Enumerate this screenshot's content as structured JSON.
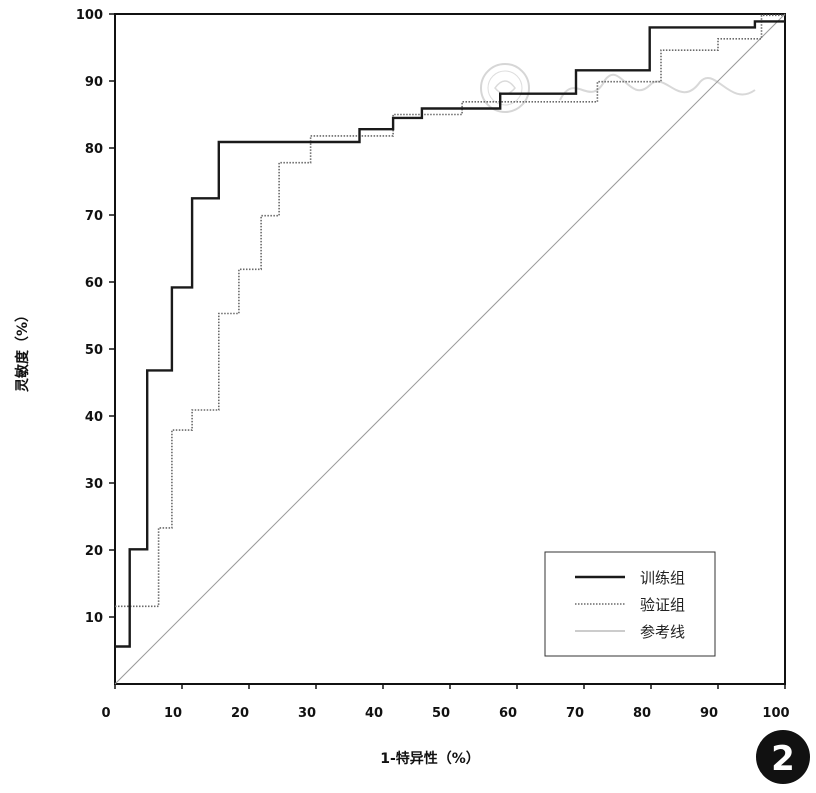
{
  "chart_data": {
    "type": "line",
    "xlabel": "1-特异性（%）",
    "ylabel": "灵敏度（%）",
    "xlim": [
      0,
      100
    ],
    "ylim": [
      0,
      100
    ],
    "xticks": [
      "0",
      "10",
      "20",
      "30",
      "40",
      "50",
      "60",
      "70",
      "80",
      "90",
      "100"
    ],
    "yticks": [
      "10",
      "20",
      "30",
      "40",
      "50",
      "60",
      "70",
      "80",
      "90",
      "100"
    ],
    "yticks_values": [
      10,
      20,
      30,
      40,
      50,
      60,
      70,
      80,
      90,
      100
    ],
    "legend_position": "bottom-right",
    "grid": false,
    "series": [
      {
        "name": "训练组",
        "style": "solid-thick",
        "color": "#1a1a1a",
        "x": [
          0,
          2.2,
          2.2,
          4.8,
          4.8,
          8.5,
          8.5,
          11.5,
          11.5,
          15.5,
          15.5,
          36.5,
          36.5,
          41.5,
          41.5,
          45.8,
          45.8,
          57.5,
          57.5,
          68.8,
          68.8,
          79.8,
          79.8,
          95.5,
          95.5,
          100
        ],
        "y": [
          5.6,
          5.6,
          20.1,
          20.1,
          46.8,
          46.8,
          59.2,
          59.2,
          72.5,
          72.5,
          80.9,
          80.9,
          82.8,
          82.8,
          84.5,
          84.5,
          85.9,
          85.9,
          88.1,
          88.1,
          91.6,
          91.6,
          98.0,
          98.0,
          98.9,
          98.9
        ]
      },
      {
        "name": "验证组",
        "style": "dotted",
        "color": "#6a6a6a",
        "x": [
          0,
          6.5,
          6.5,
          8.5,
          8.5,
          11.5,
          11.5,
          15.5,
          15.5,
          18.5,
          18.5,
          21.8,
          21.8,
          24.5,
          24.5,
          29.2,
          29.2,
          41.5,
          41.5,
          51.8,
          51.8,
          72.0,
          72.0,
          81.5,
          81.5,
          90.0,
          90.0,
          96.5,
          96.5,
          100
        ],
        "y": [
          11.6,
          11.6,
          23.3,
          23.3,
          37.9,
          37.9,
          40.9,
          40.9,
          55.3,
          55.3,
          61.9,
          61.9,
          69.9,
          69.9,
          77.8,
          77.8,
          81.8,
          81.8,
          85.0,
          85.0,
          86.9,
          86.9,
          89.9,
          89.9,
          94.6,
          94.6,
          96.3,
          96.3,
          99.8,
          99.8
        ]
      },
      {
        "name": "参考线",
        "style": "thin",
        "color": "#9a9a9a",
        "x": [
          0,
          100
        ],
        "y": [
          0,
          100
        ]
      }
    ]
  },
  "badge": {
    "label": "2"
  },
  "colors": {
    "axis": "#111111",
    "badge_bg": "#111111",
    "watermark": "#cfcfcf"
  }
}
